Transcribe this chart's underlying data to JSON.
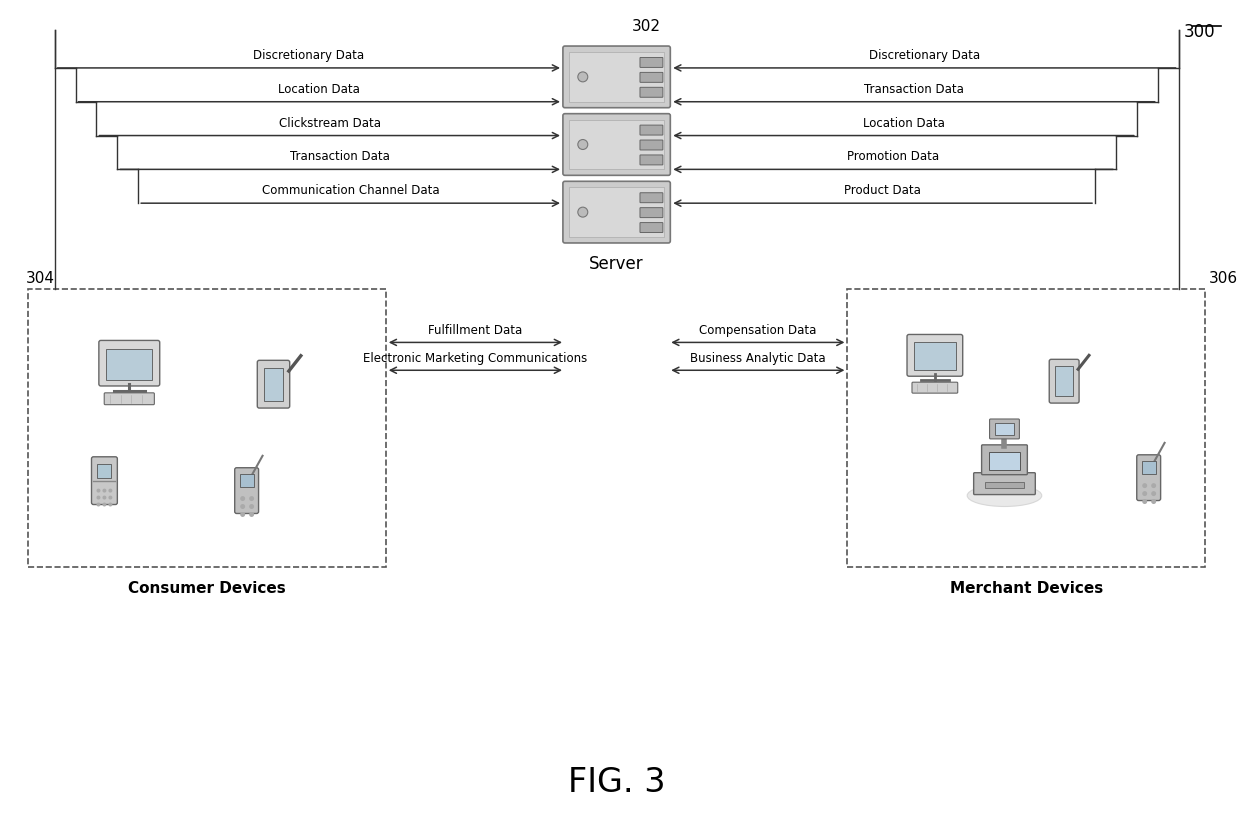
{
  "title": "FIG. 3",
  "figure_label": "300",
  "server_label": "302",
  "consumer_box_label": "304",
  "merchant_box_label": "306",
  "server_text": "Server",
  "consumer_text": "Consumer Devices",
  "merchant_text": "Merchant Devices",
  "left_arrows": [
    "Discretionary Data",
    "Location Data",
    "Clickstream Data",
    "Transaction Data",
    "Communication Channel Data"
  ],
  "right_arrows": [
    "Discretionary Data",
    "Transaction Data",
    "Location Data",
    "Promotion Data",
    "Product Data"
  ],
  "bottom_left_arrows": [
    "Fulfillment Data",
    "Electronic Marketing Communications"
  ],
  "bottom_right_arrows": [
    "Compensation Data",
    "Business Analytic Data"
  ],
  "bg_color": "#ffffff",
  "arrow_color": "#333333",
  "text_color": "#000000",
  "dashed_color": "#555555"
}
